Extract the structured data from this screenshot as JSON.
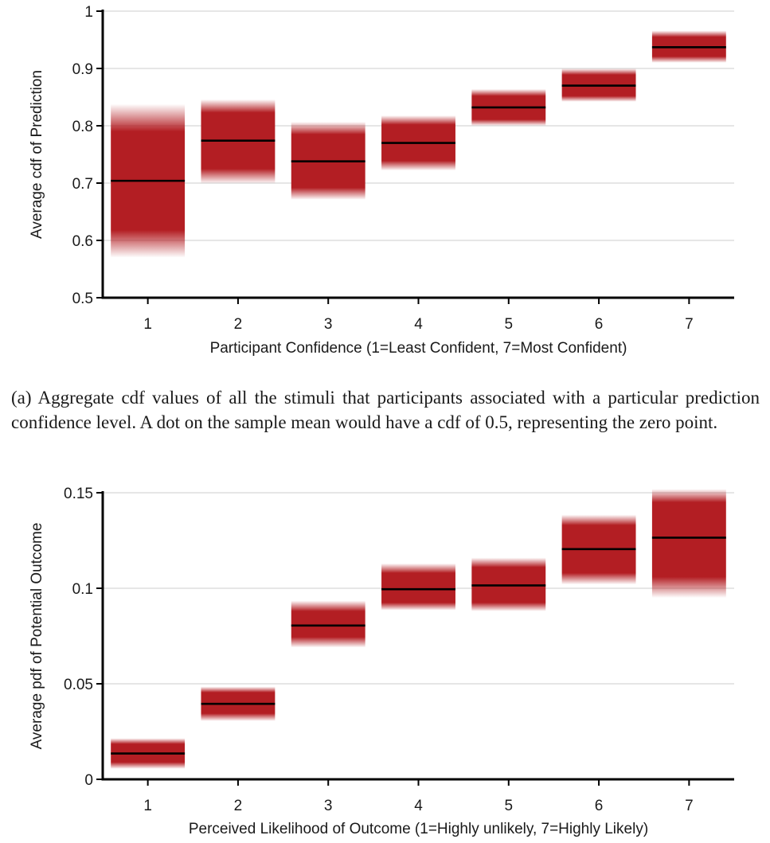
{
  "colors": {
    "box": "#b31e23",
    "mean_line": "#000000",
    "grid": "#cccccc",
    "axis": "#000000"
  },
  "caption": "(a) Aggregate cdf values of all the stimuli that participants associated with a particular prediction confidence level. A dot on the sample mean would have a cdf of 0.5, representing the zero point.",
  "chart_data": [
    {
      "type": "bar",
      "xlabel": "Participant Confidence (1=Least Confident, 7=Most Confident)",
      "ylabel": "Average cdf of Prediction",
      "ylim": [
        0.5,
        1.0
      ],
      "yticks": [
        0.5,
        0.6,
        0.7,
        0.8,
        0.9,
        1
      ],
      "ytick_labels": [
        "0.5",
        "0.6",
        "0.7",
        "0.8",
        "0.9",
        "1"
      ],
      "categories": [
        "1",
        "2",
        "3",
        "4",
        "5",
        "6",
        "7"
      ],
      "means": [
        0.704,
        0.774,
        0.738,
        0.77,
        0.832,
        0.87,
        0.937
      ],
      "inner": [
        [
          0.618,
          0.79
        ],
        [
          0.725,
          0.823
        ],
        [
          0.692,
          0.785
        ],
        [
          0.739,
          0.802
        ],
        [
          0.811,
          0.852
        ],
        [
          0.852,
          0.889
        ],
        [
          0.921,
          0.955
        ]
      ],
      "outer": [
        [
          0.57,
          0.838
        ],
        [
          0.699,
          0.846
        ],
        [
          0.671,
          0.807
        ],
        [
          0.722,
          0.818
        ],
        [
          0.8,
          0.864
        ],
        [
          0.842,
          0.9
        ],
        [
          0.91,
          0.966
        ]
      ],
      "grid": true
    },
    {
      "type": "bar",
      "xlabel": "Perceived Likelihood of Outcome (1=Highly unlikely, 7=Highly Likely)",
      "ylabel": "Average pdf of Potential Outcome",
      "ylim": [
        0,
        0.15
      ],
      "yticks": [
        0,
        0.05,
        0.1,
        0.15
      ],
      "ytick_labels": [
        "0",
        "0.05",
        "0.1",
        "0.15"
      ],
      "categories": [
        "1",
        "2",
        "3",
        "4",
        "5",
        "6",
        "7"
      ],
      "means": [
        0.0135,
        0.0395,
        0.0805,
        0.0995,
        0.1015,
        0.1205,
        0.1265
      ],
      "inner": [
        [
          0.009,
          0.0185
        ],
        [
          0.0345,
          0.0455
        ],
        [
          0.0745,
          0.088
        ],
        [
          0.0925,
          0.108
        ],
        [
          0.0925,
          0.111
        ],
        [
          0.108,
          0.133
        ],
        [
          0.106,
          0.145
        ]
      ],
      "outer": [
        [
          0.0055,
          0.0215
        ],
        [
          0.0305,
          0.0485
        ],
        [
          0.069,
          0.0935
        ],
        [
          0.0885,
          0.113
        ],
        [
          0.088,
          0.116
        ],
        [
          0.102,
          0.1385
        ],
        [
          0.095,
          0.152
        ]
      ],
      "grid": true
    }
  ]
}
